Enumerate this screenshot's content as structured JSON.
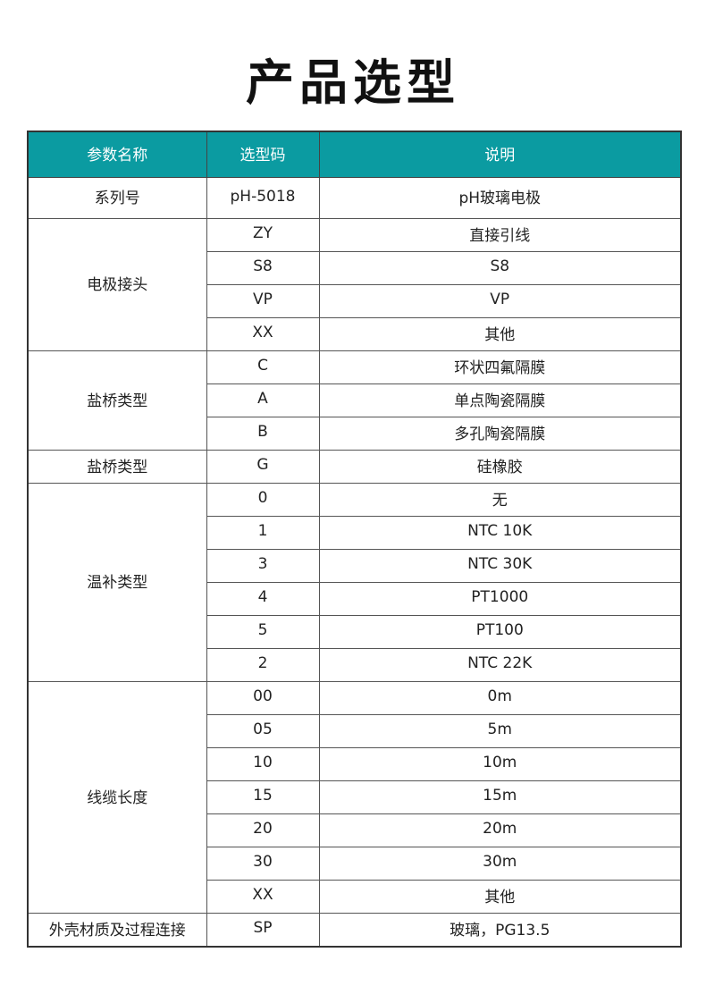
{
  "title": "产品选型",
  "headers": [
    "参数名称",
    "选型码",
    "说明"
  ],
  "groups": [
    {
      "name": "系列号",
      "rows": [
        [
          "pH-5018",
          "pH玻璃电极"
        ]
      ]
    },
    {
      "name": "电极接头",
      "rows": [
        [
          "ZY",
          "直接引线"
        ],
        [
          "S8",
          "S8"
        ],
        [
          "VP",
          "VP"
        ],
        [
          "XX",
          "其他"
        ]
      ]
    },
    {
      "name": "盐桥类型",
      "rows": [
        [
          "C",
          "环状四氟隔膜"
        ],
        [
          "A",
          "单点陶瓷隔膜"
        ],
        [
          "B",
          "多孔陶瓷隔膜"
        ]
      ]
    },
    {
      "name": "盐桥类型",
      "rows": [
        [
          "G",
          "硅橡胶"
        ]
      ]
    },
    {
      "name": "温补类型",
      "rows": [
        [
          "0",
          "无"
        ],
        [
          "1",
          "NTC 10K"
        ],
        [
          "3",
          "NTC 30K"
        ],
        [
          "4",
          "PT1000"
        ],
        [
          "5",
          "PT100"
        ],
        [
          "2",
          "NTC 22K"
        ]
      ]
    },
    {
      "name": "线缆长度",
      "rows": [
        [
          "00",
          "0m"
        ],
        [
          "05",
          "5m"
        ],
        [
          "10",
          "10m"
        ],
        [
          "15",
          "15m"
        ],
        [
          "20",
          "20m"
        ],
        [
          "30",
          "30m"
        ],
        [
          "XX",
          "其他"
        ]
      ]
    },
    {
      "name": "外壳材质及过程连接",
      "rows": [
        [
          "SP",
          "玻璃，PG13.5"
        ]
      ]
    }
  ],
  "colors": {
    "header_bg": "#0b9ba1"
  }
}
